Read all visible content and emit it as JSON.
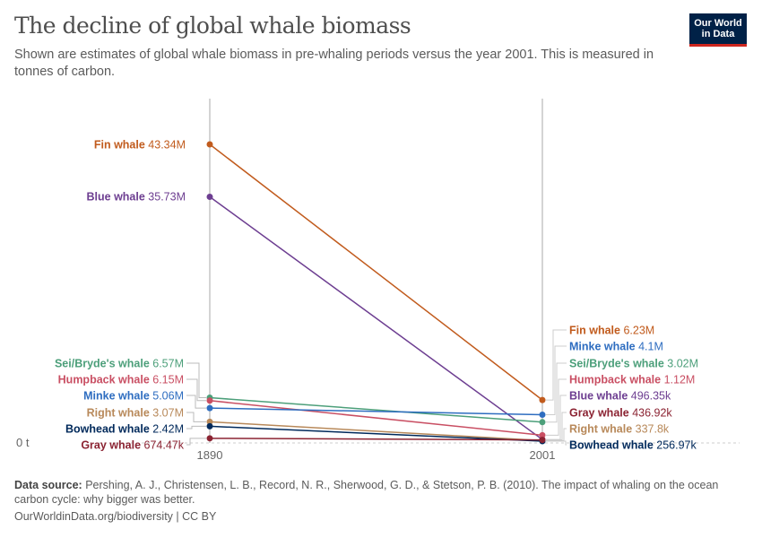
{
  "header": {
    "title": "The decline of global whale biomass",
    "subtitle": "Shown are estimates of global whale biomass in pre-whaling periods versus the year 2001. This is measured in tonnes of carbon.",
    "logo_line1": "Our World",
    "logo_line2": "in Data"
  },
  "chart_data": {
    "type": "line",
    "x": [
      "1890",
      "2001"
    ],
    "y_tick_label": "0 t",
    "ylim": [
      0,
      43340000
    ],
    "series": [
      {
        "name": "Fin whale",
        "color": "#c15b1d",
        "values": [
          43340000,
          6230000
        ],
        "labels": [
          "43.34M",
          "6.23M"
        ]
      },
      {
        "name": "Blue whale",
        "color": "#6d3e91",
        "values": [
          35730000,
          496350
        ],
        "labels": [
          "35.73M",
          "496.35k"
        ]
      },
      {
        "name": "Sei/Bryde's whale",
        "color": "#4c9f7a",
        "values": [
          6570000,
          3020000
        ],
        "labels": [
          "6.57M",
          "3.02M"
        ]
      },
      {
        "name": "Humpback whale",
        "color": "#c94f63",
        "values": [
          6150000,
          1120000
        ],
        "labels": [
          "6.15M",
          "1.12M"
        ]
      },
      {
        "name": "Minke whale",
        "color": "#2e6dc0",
        "values": [
          5060000,
          4100000
        ],
        "labels": [
          "5.06M",
          "4.1M"
        ]
      },
      {
        "name": "Right whale",
        "color": "#b8895a",
        "values": [
          3070000,
          337800
        ],
        "labels": [
          "3.07M",
          "337.8k"
        ]
      },
      {
        "name": "Bowhead whale",
        "color": "#00295b",
        "values": [
          2420000,
          256970
        ],
        "labels": [
          "2.42M",
          "256.97k"
        ]
      },
      {
        "name": "Gray whale",
        "color": "#8b2332",
        "values": [
          674470,
          436920
        ],
        "labels": [
          "674.47k",
          "436.92k"
        ]
      }
    ],
    "right_label_order": [
      "Fin whale",
      "Minke whale",
      "Sei/Bryde's whale",
      "Humpback whale",
      "Blue whale",
      "Gray whale",
      "Right whale",
      "Bowhead whale"
    ]
  },
  "source": {
    "label": "Data source:",
    "text": " Pershing, A. J., Christensen, L. B., Record, N. R., Sherwood, G. D., & Stetson, P. B. (2010). The impact of whaling on the ocean carbon cycle: why bigger was better."
  },
  "footer": "OurWorldinData.org/biodiversity | CC BY"
}
